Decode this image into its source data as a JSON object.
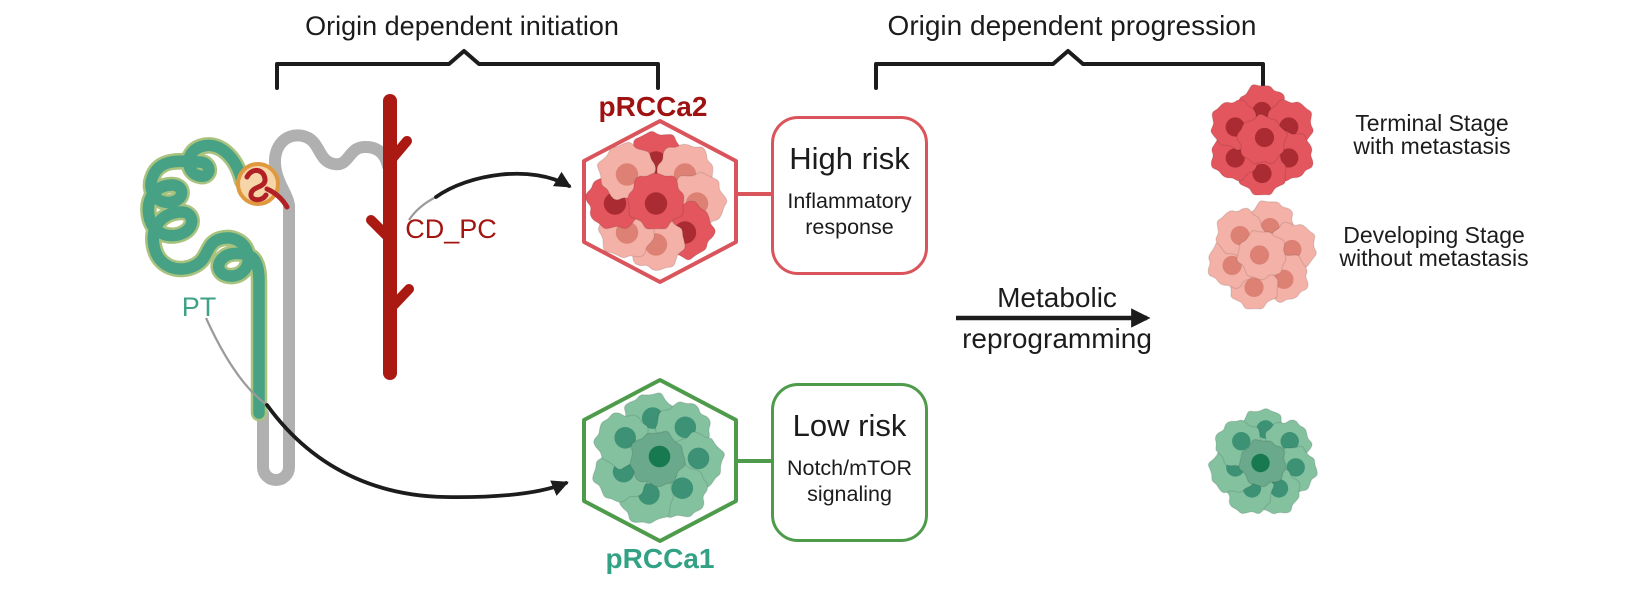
{
  "titles": {
    "initiation": "Origin dependent initiation",
    "progression": "Origin dependent progression"
  },
  "nephron": {
    "pt_label": "PT",
    "cd_label": "CD_PC"
  },
  "origin_labels": {
    "prcca2": "pRCCa2",
    "prcca1": "pRCCa1"
  },
  "risk": {
    "high": {
      "title": "High risk",
      "subtitle": "Inflammatory response"
    },
    "low": {
      "title": "Low risk",
      "subtitle": "Notch/mTOR signaling"
    }
  },
  "transition": {
    "line1": "Metabolic",
    "line2": "reprogramming"
  },
  "stages": {
    "terminal": {
      "line1": "Terminal Stage",
      "line2": "with metastasis"
    },
    "developing": {
      "line1": "Developing Stage",
      "line2": "without metastasis"
    }
  },
  "icons": {
    "brackets": "curly-brace-icon",
    "arrows": "curved-arrow-icon",
    "hexagons": "hexagon-frame-icon",
    "clusters": "tumor-cell-cluster-icon",
    "nephron": "nephron-tubule-icon"
  },
  "colors": {
    "ink": "#1c1c1c",
    "red_accent": "#d9545b",
    "green_accent": "#4f9b4c",
    "prcca2_text": "#9e1212",
    "prcca1_text": "#33a184",
    "pt_text": "#3ea188",
    "cd_text": "#a31511",
    "cd_duct": "#ab1a12",
    "pt_tubule": "#47a184",
    "pt_tubule_outline": "#a9c37f",
    "tubule_gray": "#b0b0b0",
    "leader_gray": "#9a9a9a",
    "glomerulus_fill": "#f6d5a9",
    "glomerulus_stroke": "#e0993f",
    "glomerulus_capillary": "#b02025",
    "dark_red_cell": "#e4565e",
    "dark_red_nucleus": "#ab2b32",
    "pink_cell": "#f3b1a7",
    "pink_nucleus": "#dd8175",
    "green_cell": "#84c19f",
    "green_nucleus": "#3d9276",
    "green_center_cell": "#6aa98b",
    "green_center_nucleus": "#16794f"
  }
}
